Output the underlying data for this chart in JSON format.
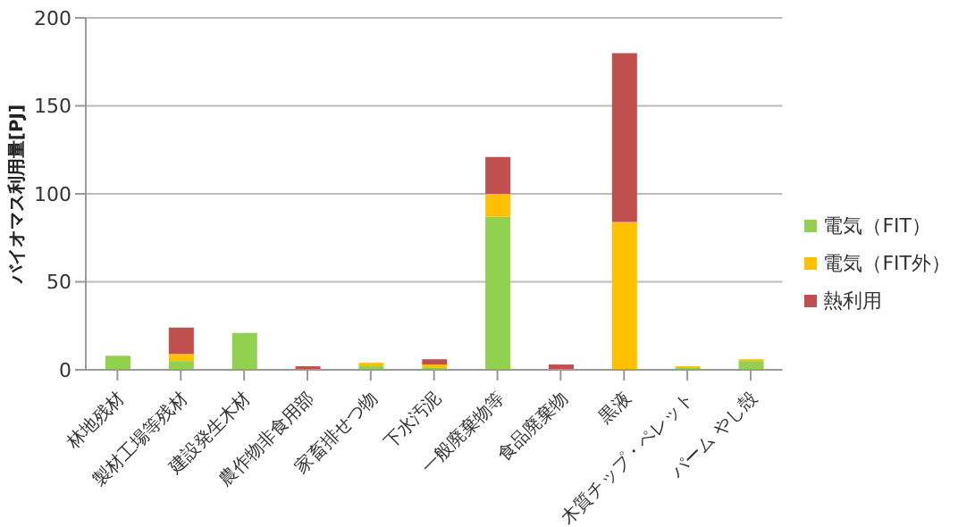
{
  "chart_data": {
    "type": "bar",
    "stacked": true,
    "ylabel": "バイオマス利用量[PJ]",
    "categories": [
      "林地残材",
      "製材工場等残材",
      "建設発生木材",
      "農作物非食用部",
      "家畜排せつ物",
      "下水汚泥",
      "一般廃棄物等",
      "食品廃棄物",
      "黒液",
      "木質チップ・ペレット",
      "パーム やし殻"
    ],
    "series": [
      {
        "name": "電気（FIT）",
        "color": "#92d050",
        "values": [
          8,
          5,
          21,
          0,
          2,
          1,
          87,
          0,
          0,
          1,
          5
        ]
      },
      {
        "name": "電気（FIT外）",
        "color": "#ffc000",
        "values": [
          0,
          4,
          0,
          0,
          2,
          2,
          13,
          0,
          84,
          1,
          1
        ]
      },
      {
        "name": "熱利用",
        "color": "#c0504d",
        "values": [
          0,
          15,
          0,
          2,
          0,
          3,
          21,
          3,
          96,
          0,
          0
        ]
      }
    ],
    "ylim": [
      0,
      200
    ],
    "yticks": [
      0,
      50,
      100,
      150,
      200
    ],
    "grid": "y",
    "legend": "right"
  }
}
